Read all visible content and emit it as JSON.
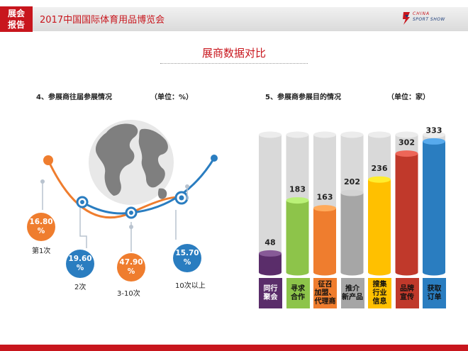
{
  "header": {
    "badge_line1": "展会",
    "badge_line2": "报告",
    "title": "2017中国国际体育用品博览会",
    "logo_line1": "CHINA",
    "logo_line2": "SPORT SHOW"
  },
  "page_title": "展商数据对比",
  "left_section": {
    "title": "4、参展商往届参展情况",
    "unit": "（单位：%）"
  },
  "right_section": {
    "title": "5、参展商参展目的情况",
    "unit": "（单位：家）"
  },
  "colors": {
    "accent_red": "#c8161d",
    "orange": "#ef7d2e",
    "blue": "#2a7dc0",
    "purple": "#5a2d6a",
    "green": "#8dc44a",
    "gray": "#a6a6a6",
    "yellow": "#ffc000",
    "red": "#c0392b"
  },
  "chart_data": [
    {
      "type": "pie",
      "title": "4、参展商往届参展情况",
      "unit": "（单位：%）",
      "categories": [
        "第1次",
        "2次",
        "3-10次",
        "10次以上"
      ],
      "values": [
        16.8,
        19.6,
        47.9,
        15.7
      ],
      "value_labels": [
        "16.80\n%",
        "19.60\n%",
        "47.90\n%",
        "15.70\n%"
      ]
    },
    {
      "type": "bar",
      "title": "5、参展商参展目的情况",
      "unit": "（单位：家）",
      "categories": [
        "同行聚会",
        "寻求合作",
        "征召加盟、代理商",
        "推介新产品",
        "搜集行业信息",
        "品牌宣传",
        "获取订单"
      ],
      "category_lines": [
        [
          "同行",
          "聚会"
        ],
        [
          "寻求",
          "合作"
        ],
        [
          "征召",
          "加盟、",
          "代理商"
        ],
        [
          "推介",
          "新产品"
        ],
        [
          "搜集",
          "行业",
          "信息"
        ],
        [
          "品牌",
          "宣传"
        ],
        [
          "获取",
          "订单"
        ]
      ],
      "values": [
        48,
        183,
        163,
        202,
        236,
        302,
        333
      ],
      "ylim": [
        0,
        350
      ],
      "colors": [
        "#5a2d6a",
        "#8dc44a",
        "#ef7d2e",
        "#a6a6a6",
        "#ffc000",
        "#c0392b",
        "#2a7dc0"
      ]
    }
  ]
}
